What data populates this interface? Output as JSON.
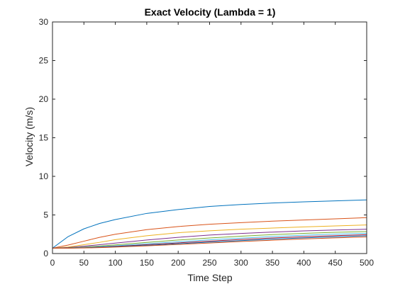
{
  "chart_data": {
    "type": "line",
    "title": "Exact Velocity (Lambda = 1)",
    "xlabel": "Time Step",
    "ylabel": "Velocity (m/s)",
    "xlim": [
      0,
      500
    ],
    "ylim": [
      0,
      30
    ],
    "xticks": [
      0,
      50,
      100,
      150,
      200,
      250,
      300,
      350,
      400,
      450,
      500
    ],
    "yticks": [
      0,
      5,
      10,
      15,
      20,
      25,
      30
    ],
    "grid": false,
    "legend": "none",
    "x": [
      0,
      25,
      50,
      75,
      100,
      150,
      200,
      250,
      300,
      350,
      400,
      450,
      500
    ],
    "series": [
      {
        "color": "#0072BD",
        "values": [
          0.7,
          2.2,
          3.2,
          3.9,
          4.4,
          5.2,
          5.7,
          6.1,
          6.35,
          6.55,
          6.7,
          6.82,
          6.95
        ]
      },
      {
        "color": "#D95319",
        "values": [
          0.7,
          1.1,
          1.6,
          2.1,
          2.5,
          3.1,
          3.5,
          3.8,
          4.0,
          4.2,
          4.35,
          4.5,
          4.65
        ]
      },
      {
        "color": "#EDB120",
        "values": [
          0.7,
          0.85,
          1.15,
          1.45,
          1.8,
          2.3,
          2.7,
          2.95,
          3.15,
          3.3,
          3.45,
          3.58,
          3.7
        ]
      },
      {
        "color": "#7E2F8E",
        "values": [
          0.7,
          0.78,
          0.95,
          1.15,
          1.35,
          1.75,
          2.1,
          2.4,
          2.6,
          2.78,
          2.93,
          3.05,
          3.15
        ]
      },
      {
        "color": "#77AC30",
        "values": [
          0.7,
          0.74,
          0.84,
          0.98,
          1.12,
          1.45,
          1.75,
          2.02,
          2.25,
          2.45,
          2.62,
          2.75,
          2.85
        ]
      },
      {
        "color": "#4DBEEE",
        "values": [
          0.7,
          0.72,
          0.79,
          0.89,
          1.0,
          1.27,
          1.52,
          1.78,
          2.0,
          2.2,
          2.37,
          2.51,
          2.62
        ]
      },
      {
        "color": "#A2142F",
        "values": [
          0.7,
          0.71,
          0.76,
          0.84,
          0.93,
          1.15,
          1.38,
          1.6,
          1.82,
          2.02,
          2.18,
          2.32,
          2.44
        ]
      },
      {
        "color": "#0072BD",
        "values": [
          0.7,
          0.7,
          0.74,
          0.8,
          0.88,
          1.07,
          1.27,
          1.48,
          1.68,
          1.87,
          2.03,
          2.17,
          2.3
        ]
      },
      {
        "color": "#D95319",
        "values": [
          0.7,
          0.7,
          0.72,
          0.77,
          0.84,
          1.0,
          1.18,
          1.37,
          1.56,
          1.73,
          1.89,
          2.03,
          2.15
        ]
      }
    ]
  }
}
